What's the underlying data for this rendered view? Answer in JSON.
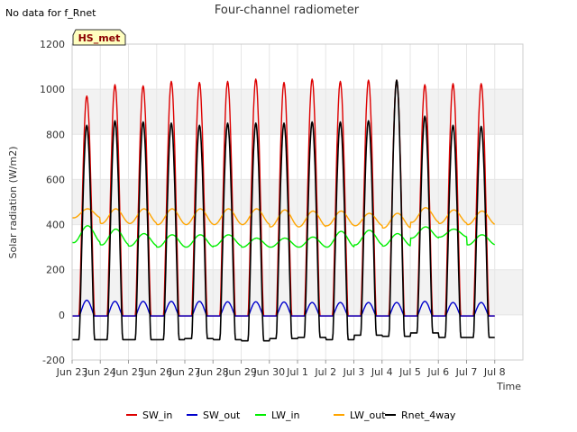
{
  "note": "No data for f_Rnet",
  "chart_data": {
    "type": "line",
    "title": "Four-channel radiometer",
    "xlabel": "Time",
    "ylabel": "Solar radiation (W/m2)",
    "ylim": [
      -200,
      1200
    ],
    "yticks": [
      -200,
      0,
      200,
      400,
      600,
      800,
      1000,
      1200
    ],
    "xlim": [
      0,
      16
    ],
    "xtick_labels": [
      "Jun 23",
      "Jun 24",
      "Jun 25",
      "Jun 26",
      "Jun 27",
      "Jun 28",
      "Jun 29",
      "Jun 30",
      "Jul 1",
      "Jul 2",
      "Jul 3",
      "Jul 4",
      "Jul 5",
      "Jul 6",
      "Jul 7",
      "Jul 8"
    ],
    "band_shading": true,
    "legend_placement": "bottom",
    "annotation": "HS_met",
    "days": [
      "Jun 23",
      "Jun 24",
      "Jun 25",
      "Jun 26",
      "Jun 27",
      "Jun 28",
      "Jun 29",
      "Jun 30",
      "Jul 1",
      "Jul 2",
      "Jul 3",
      "Jul 4",
      "Jul 5",
      "Jul 6",
      "Jul 7"
    ],
    "series": [
      {
        "name": "SW_in",
        "color": "#dd0000",
        "night": -5,
        "daily_peak": [
          970,
          1020,
          1015,
          1035,
          1030,
          1035,
          1045,
          1030,
          1045,
          1035,
          1040,
          1040,
          1020,
          1025,
          1025
        ]
      },
      {
        "name": "SW_out",
        "color": "#0000cc",
        "night": -5,
        "daily_peak": [
          65,
          60,
          60,
          60,
          60,
          58,
          58,
          57,
          55,
          55,
          55,
          55,
          60,
          55,
          55
        ]
      },
      {
        "name": "LW_in",
        "color": "#00ee00",
        "daily_min": [
          320,
          310,
          305,
          300,
          300,
          305,
          300,
          300,
          300,
          300,
          310,
          305,
          340,
          345,
          310
        ],
        "daily_max": [
          395,
          380,
          360,
          355,
          355,
          355,
          340,
          340,
          345,
          370,
          375,
          360,
          390,
          380,
          355
        ]
      },
      {
        "name": "LW_out",
        "color": "#ffa500",
        "daily_min": [
          430,
          405,
          405,
          400,
          400,
          400,
          400,
          390,
          390,
          395,
          395,
          385,
          410,
          405,
          400
        ],
        "daily_max": [
          470,
          470,
          470,
          470,
          470,
          470,
          470,
          465,
          460,
          460,
          450,
          450,
          475,
          465,
          460
        ]
      },
      {
        "name": "Rnet_4way",
        "color": "#000000",
        "daily_min": [
          -110,
          -110,
          -110,
          -110,
          -105,
          -110,
          -115,
          -105,
          -100,
          -110,
          -90,
          -95,
          -80,
          -100,
          -100
        ],
        "daily_peak": [
          840,
          860,
          855,
          850,
          840,
          850,
          850,
          850,
          855,
          855,
          860,
          1040,
          880,
          840,
          835
        ]
      }
    ]
  }
}
